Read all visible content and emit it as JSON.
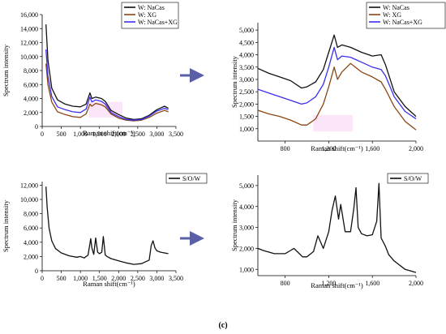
{
  "caption": "(c)",
  "colors": {
    "black": "#111111",
    "brown": "#8b4513",
    "blue": "#3a2ff0",
    "pink": "#f4b8ee",
    "arrow": "#5b5fa8"
  },
  "chart_data": [
    {
      "type": "line",
      "xlabel": "Raman shift(cm⁻¹)",
      "ylabel": "Spectrum intensity",
      "xlim": [
        0,
        3500
      ],
      "ylim": [
        0,
        16000
      ],
      "xticks": [
        0,
        500,
        1000,
        1500,
        2000,
        2500,
        3000,
        3500
      ],
      "xtick_labels": [
        "0",
        "500",
        "1,000",
        "1,500",
        "2,000",
        "2,500",
        "3,000",
        "3,500"
      ],
      "yticks": [
        0,
        2000,
        4000,
        6000,
        8000,
        10000,
        12000,
        14000,
        16000
      ],
      "ytick_labels": [
        "0",
        "2,000",
        "4,000",
        "6,000",
        "8,000",
        "10,000",
        "12,000",
        "14,000",
        "16,000"
      ],
      "legend": "top-right",
      "series": [
        {
          "name": "W: NaCas",
          "color": "#111111",
          "x": [
            100,
            150,
            250,
            400,
            600,
            800,
            1000,
            1150,
            1250,
            1300,
            1400,
            1550,
            1650,
            1800,
            2000,
            2200,
            2400,
            2600,
            2800,
            3000,
            3200,
            3300
          ],
          "y": [
            14600,
            9500,
            5500,
            3800,
            3200,
            2900,
            2800,
            3200,
            4800,
            4000,
            4200,
            4000,
            3600,
            2300,
            1700,
            1200,
            1000,
            1100,
            1600,
            2400,
            2900,
            2600
          ]
        },
        {
          "name": "W: XG",
          "color": "#8b4513",
          "x": [
            100,
            150,
            250,
            400,
            600,
            800,
            1000,
            1150,
            1250,
            1300,
            1400,
            1550,
            1650,
            1800,
            2000,
            2200,
            2400,
            2600,
            2800,
            3000,
            3200,
            3300
          ],
          "y": [
            9000,
            6000,
            3500,
            2100,
            1700,
            1400,
            1300,
            1800,
            3200,
            2900,
            3300,
            3100,
            2800,
            1800,
            1200,
            900,
            800,
            900,
            1300,
            1900,
            2300,
            2100
          ]
        },
        {
          "name": "W: NaCas+XG",
          "color": "#3a2ff0",
          "x": [
            100,
            150,
            250,
            400,
            600,
            800,
            1000,
            1150,
            1250,
            1300,
            1400,
            1550,
            1650,
            1800,
            2000,
            2200,
            2400,
            2600,
            2800,
            3000,
            3200,
            3300
          ],
          "y": [
            11000,
            7200,
            4300,
            2800,
            2400,
            2100,
            2000,
            2500,
            4200,
            3500,
            3800,
            3600,
            3200,
            2000,
            1400,
            1000,
            900,
            1000,
            1500,
            2200,
            2600,
            2400
          ]
        }
      ]
    },
    {
      "type": "line",
      "xlabel": "Raman shift(cm⁻¹)",
      "ylabel": "Spectrum intensity",
      "xlim": [
        550,
        2000
      ],
      "ylim": [
        500,
        5300
      ],
      "xticks": [
        800,
        1200,
        1600,
        2000
      ],
      "xtick_labels": [
        "800",
        "1,200",
        "1,600",
        "2,000"
      ],
      "yticks": [
        1000,
        1500,
        2000,
        2500,
        3000,
        3500,
        4000,
        4500,
        5000
      ],
      "ytick_labels": [
        "1,000",
        "1,500",
        "2,000",
        "2,500",
        "3,000",
        "3,500",
        "4,000",
        "4,500",
        "5,000"
      ],
      "legend": "top-right",
      "series": [
        {
          "name": "W: NaCas",
          "color": "#111111",
          "x": [
            550,
            650,
            750,
            850,
            950,
            1000,
            1080,
            1150,
            1200,
            1250,
            1280,
            1320,
            1400,
            1500,
            1600,
            1680,
            1720,
            1800,
            1900,
            2000
          ],
          "y": [
            3450,
            3250,
            3100,
            2950,
            2650,
            2700,
            2900,
            3400,
            4100,
            4800,
            4300,
            4400,
            4300,
            4100,
            3950,
            4000,
            3600,
            2500,
            1900,
            1500
          ]
        },
        {
          "name": "W: XG",
          "color": "#8b4513",
          "x": [
            550,
            650,
            750,
            850,
            950,
            1000,
            1080,
            1150,
            1200,
            1250,
            1280,
            1320,
            1400,
            1500,
            1600,
            1680,
            1720,
            1800,
            1900,
            2000
          ],
          "y": [
            1750,
            1600,
            1500,
            1350,
            1150,
            1150,
            1400,
            2000,
            2700,
            3500,
            3000,
            3300,
            3650,
            3300,
            3100,
            2900,
            2600,
            1900,
            1300,
            950
          ]
        },
        {
          "name": "W: NaCas+XG",
          "color": "#3a2ff0",
          "x": [
            550,
            650,
            750,
            850,
            950,
            1000,
            1080,
            1150,
            1200,
            1250,
            1280,
            1320,
            1400,
            1500,
            1600,
            1680,
            1720,
            1800,
            1900,
            2000
          ],
          "y": [
            2600,
            2450,
            2300,
            2150,
            2000,
            2050,
            2300,
            2800,
            3500,
            4300,
            3800,
            3950,
            3900,
            3700,
            3500,
            3400,
            3150,
            2300,
            1700,
            1400
          ]
        }
      ]
    },
    {
      "type": "line",
      "xlabel": "Raman shift(cm⁻¹)",
      "ylabel": "Spectrum intensity",
      "xlim": [
        0,
        3500
      ],
      "ylim": [
        0,
        12500
      ],
      "xticks": [
        0,
        500,
        1000,
        1500,
        2000,
        2500,
        3000,
        3500
      ],
      "xtick_labels": [
        "0",
        "500",
        "1,000",
        "1,500",
        "2,000",
        "2,500",
        "3,000",
        "3,500"
      ],
      "yticks": [
        0,
        2000,
        4000,
        6000,
        8000,
        10000,
        12000
      ],
      "ytick_labels": [
        "0",
        "2,000",
        "4,000",
        "6,000",
        "8,000",
        "10,000",
        "12,000"
      ],
      "legend": "top-right",
      "series": [
        {
          "name": "S/O/W",
          "color": "#111111",
          "x": [
            100,
            130,
            180,
            250,
            350,
            500,
            700,
            900,
            1000,
            1100,
            1200,
            1270,
            1300,
            1350,
            1400,
            1450,
            1500,
            1560,
            1600,
            1650,
            1700,
            1800,
            2000,
            2200,
            2400,
            2600,
            2800,
            2850,
            2900,
            2950,
            3000,
            3100,
            3200,
            3300
          ],
          "y": [
            11800,
            9000,
            6000,
            4200,
            3100,
            2500,
            2100,
            1900,
            2000,
            1800,
            2200,
            4500,
            3200,
            2300,
            4600,
            2600,
            2400,
            2600,
            4800,
            2200,
            2000,
            1700,
            1400,
            1100,
            900,
            1000,
            1500,
            3500,
            4200,
            3200,
            2800,
            2600,
            2500,
            2400
          ]
        }
      ]
    },
    {
      "type": "line",
      "xlabel": "Raman shift(cm⁻¹)",
      "ylabel": "Spectrum intensity",
      "xlim": [
        550,
        2000
      ],
      "ylim": [
        700,
        5500
      ],
      "xticks": [
        800,
        1200,
        1600,
        2000
      ],
      "xtick_labels": [
        "800",
        "1,200",
        "1,600",
        "2,000"
      ],
      "yticks": [
        1000,
        2000,
        3000,
        4000,
        5000
      ],
      "ytick_labels": [
        "1,000",
        "2,000",
        "3,000",
        "4,000",
        "5,000"
      ],
      "legend": "top-right",
      "series": [
        {
          "name": "S/O/W",
          "color": "#111111",
          "x": [
            550,
            600,
            700,
            800,
            850,
            880,
            920,
            960,
            1000,
            1060,
            1100,
            1150,
            1200,
            1230,
            1260,
            1290,
            1310,
            1350,
            1400,
            1430,
            1450,
            1470,
            1500,
            1550,
            1600,
            1640,
            1660,
            1680,
            1720,
            1750,
            1800,
            1900,
            2000
          ],
          "y": [
            2000,
            1900,
            1750,
            1750,
            1900,
            2000,
            1800,
            1600,
            1600,
            1850,
            2600,
            2000,
            2800,
            3800,
            4500,
            3400,
            4100,
            2800,
            2800,
            3900,
            4900,
            3000,
            2700,
            2600,
            2650,
            3300,
            5100,
            2500,
            2100,
            1700,
            1400,
            1000,
            850
          ]
        }
      ]
    }
  ]
}
